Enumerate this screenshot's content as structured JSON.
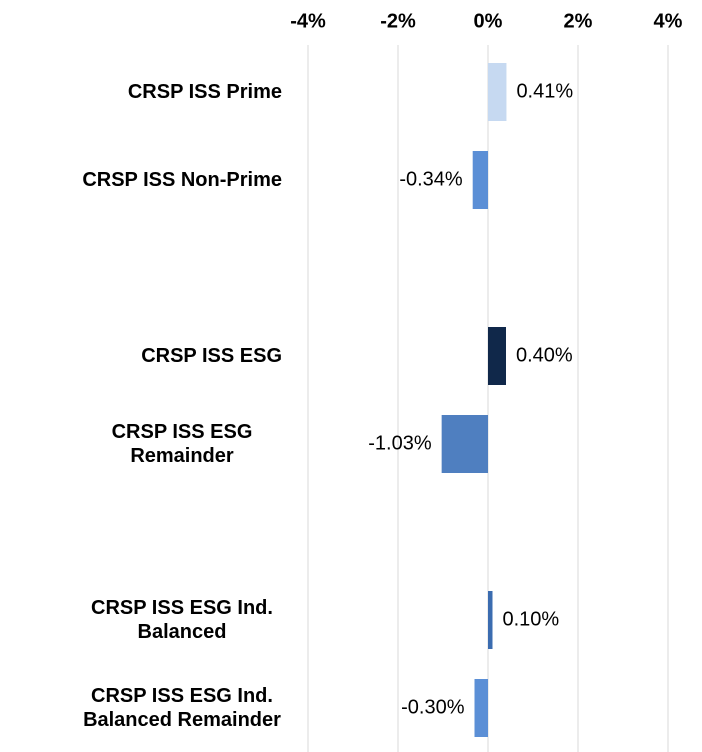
{
  "chart_data": {
    "type": "hbar",
    "categories": [
      "CRSP ISS Prime",
      "CRSP ISS Non-Prime",
      null,
      "CRSP ISS ESG",
      "CRSP ISS ESG Remainder",
      null,
      "CRSP ISS ESG Ind. Balanced",
      "CRSP ISS ESG Ind. Balanced Remainder"
    ],
    "values": [
      0.41,
      -0.34,
      null,
      0.4,
      -1.03,
      null,
      0.1,
      -0.3
    ],
    "value_labels": [
      "0.41%",
      "-0.34%",
      null,
      "0.40%",
      "-1.03%",
      null,
      "0.10%",
      "-0.30%"
    ],
    "colors": [
      "#c6d9f1",
      "#5b8fd6",
      null,
      "#10284a",
      "#4f7fc0",
      null,
      "#3b6cb0",
      "#5b8fd6"
    ],
    "xlim": [
      -4,
      4
    ],
    "xticks": [
      {
        "value": -4,
        "label": "-4%"
      },
      {
        "value": -2,
        "label": "-2%"
      },
      {
        "value": 0,
        "label": "0%"
      },
      {
        "value": 2,
        "label": "2%"
      },
      {
        "value": 4,
        "label": "4%"
      }
    ],
    "grid": true
  }
}
